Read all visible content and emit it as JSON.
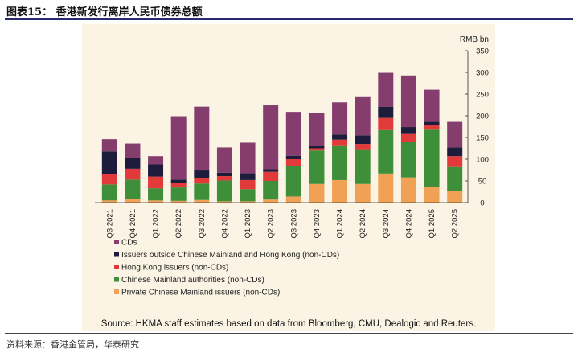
{
  "header": {
    "title": "图表15：  香港新发行离岸人民币债券总额"
  },
  "footer": {
    "text": "资料来源：香港金管局，华泰研究"
  },
  "colors": {
    "cds": "#843d6c",
    "outside": "#1d1c3d",
    "hk": "#e23a3a",
    "mainland_auth": "#3e8e3a",
    "private": "#f0a156",
    "panel_bg": "#fbf4e4"
  },
  "chart_data": {
    "type": "bar",
    "stacked": true,
    "unit_label": "RMB bn",
    "ylim": [
      0,
      350
    ],
    "yticks": [
      0,
      50,
      100,
      150,
      200,
      250,
      300,
      350
    ],
    "categories": [
      "Q3 2021",
      "Q4 2021",
      "Q1 2022",
      "Q2 2022",
      "Q3 2022",
      "Q4 2022",
      "Q1 2023",
      "Q2 2023",
      "Q3 2023",
      "Q4 2023",
      "Q1 2024",
      "Q2 2024",
      "Q3 2024",
      "Q4 2024",
      "Q1 2025",
      "Q2 2025"
    ],
    "series": [
      {
        "name": "Private Chinese Mainland issuers (non-CDs)",
        "color_key": "private",
        "values": [
          5,
          8,
          5,
          4,
          6,
          3,
          3,
          7,
          14,
          43,
          52,
          43,
          67,
          58,
          36,
          27
        ]
      },
      {
        "name": "Chinese Mainland authorities (non-CDs)",
        "color_key": "mainland_auth",
        "values": [
          37,
          45,
          28,
          31,
          38,
          48,
          28,
          43,
          70,
          77,
          80,
          80,
          100,
          82,
          132,
          55
        ]
      },
      {
        "name": "Hong Kong issuers (non-CDs)",
        "color_key": "hk",
        "values": [
          24,
          25,
          27,
          10,
          12,
          10,
          21,
          21,
          16,
          5,
          13,
          12,
          28,
          18,
          10,
          25
        ]
      },
      {
        "name": "Issuers outside Chinese Mainland and Hong Kong (non-CDs)",
        "color_key": "outside",
        "values": [
          52,
          24,
          28,
          8,
          18,
          8,
          16,
          6,
          8,
          6,
          12,
          20,
          26,
          16,
          8,
          20
        ]
      },
      {
        "name": "CDs",
        "color_key": "cds",
        "values": [
          28,
          34,
          19,
          146,
          147,
          58,
          70,
          147,
          101,
          76,
          74,
          88,
          78,
          119,
          74,
          59
        ]
      }
    ],
    "legend_order": [
      "CDs",
      "Issuers outside Chinese Mainland and Hong Kong (non-CDs)",
      "Hong Kong issuers (non-CDs)",
      "Chinese Mainland authorities (non-CDs)",
      "Private Chinese Mainland issuers (non-CDs)"
    ],
    "source": "Source:  HKMA staff estimates based on data from Bloomberg, CMU, Dealogic and Reuters."
  }
}
